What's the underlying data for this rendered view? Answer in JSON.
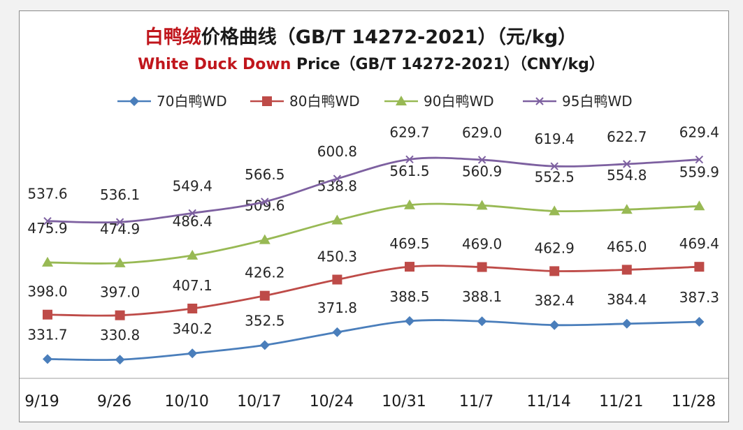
{
  "chart_data": {
    "type": "line",
    "title_zh_red": "白鸭绒",
    "title_zh_rest": "价格曲线（GB/T 14272-2021）（元/kg）",
    "title_en_red": "White Duck Down",
    "title_en_rest": " Price（GB/T 14272-2021）（CNY/kg）",
    "categories": [
      "9/19",
      "9/26",
      "10/10",
      "10/17",
      "10/24",
      "10/31",
      "11/7",
      "11/14",
      "11/21",
      "11/28"
    ],
    "series": [
      {
        "name": "70白鸭WD",
        "color": "#4a7ebb",
        "marker": "diamond",
        "values": [
          331.7,
          330.8,
          340.2,
          352.5,
          371.8,
          388.5,
          388.1,
          382.4,
          384.4,
          387.3
        ],
        "labels": [
          "331.7",
          "330.8",
          "340.2",
          "352.5",
          "371.8",
          "388.5",
          "388.1",
          "382.4",
          "384.4",
          "387.3"
        ]
      },
      {
        "name": "80白鸭WD",
        "color": "#be4b48",
        "marker": "square",
        "values": [
          398.0,
          397.0,
          407.1,
          426.2,
          450.3,
          469.5,
          469.0,
          462.9,
          465.0,
          469.4
        ],
        "labels": [
          "398.0",
          "397.0",
          "407.1",
          "426.2",
          "450.3",
          "469.5",
          "469.0",
          "462.9",
          "465.0",
          "469.4"
        ]
      },
      {
        "name": "90白鸭WD",
        "color": "#98b954",
        "marker": "triangle",
        "values": [
          475.9,
          474.9,
          486.4,
          509.6,
          538.8,
          561.5,
          560.9,
          552.5,
          554.8,
          559.9
        ],
        "labels": [
          "475.9",
          "474.9",
          "486.4",
          "509.6",
          "538.8",
          "561.5",
          "560.9",
          "552.5",
          "554.8",
          "559.9"
        ]
      },
      {
        "name": "95白鸭WD",
        "color": "#7d60a0",
        "marker": "x",
        "values": [
          537.6,
          536.1,
          549.4,
          566.5,
          600.8,
          629.7,
          629.0,
          619.4,
          622.7,
          629.4
        ],
        "labels": [
          "537.6",
          "536.1",
          "549.4",
          "566.5",
          "600.8",
          "629.7",
          "629.0",
          "619.4",
          "622.7",
          "629.4"
        ]
      }
    ],
    "legend_position": "top",
    "grid": false
  }
}
